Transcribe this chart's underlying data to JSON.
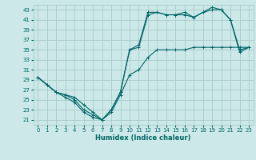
{
  "xlabel": "Humidex (Indice chaleur)",
  "ylabel": "",
  "bg_color": "#cce8e8",
  "grid_color": "#aacccc",
  "line_color": "#006666",
  "xlim": [
    -0.5,
    23.5
  ],
  "ylim": [
    20.0,
    44.0
  ],
  "yticks": [
    21,
    23,
    25,
    27,
    29,
    31,
    33,
    35,
    37,
    39,
    41,
    43
  ],
  "xticks": [
    0,
    1,
    2,
    3,
    4,
    5,
    6,
    7,
    8,
    9,
    10,
    11,
    12,
    13,
    14,
    15,
    16,
    17,
    18,
    19,
    20,
    21,
    22,
    23
  ],
  "line1_x": [
    0,
    1,
    2,
    3,
    4,
    5,
    6,
    7,
    8,
    9,
    10,
    11,
    12,
    13,
    14,
    15,
    16,
    17,
    18,
    19,
    20,
    21,
    22,
    23
  ],
  "line1_y": [
    29.5,
    28,
    26.5,
    25.5,
    24.5,
    22.5,
    21.5,
    21,
    23,
    26.5,
    35,
    35.5,
    42,
    42.5,
    42,
    42,
    42,
    41.5,
    42.5,
    43,
    43,
    41,
    34.5,
    35.5
  ],
  "line2_x": [
    0,
    1,
    2,
    3,
    4,
    5,
    6,
    7,
    8,
    9,
    10,
    11,
    12,
    13,
    14,
    15,
    16,
    17,
    18,
    19,
    20,
    21,
    22,
    23
  ],
  "line2_y": [
    29.5,
    28,
    26.5,
    26,
    25,
    23,
    22,
    21,
    23,
    26.5,
    35,
    36,
    42.5,
    42.5,
    42,
    42,
    42.5,
    41.5,
    42.5,
    43.5,
    43,
    41,
    35,
    35.5
  ],
  "line3_x": [
    0,
    1,
    2,
    3,
    4,
    5,
    6,
    7,
    8,
    9,
    10,
    11,
    12,
    13,
    14,
    15,
    16,
    17,
    18,
    19,
    20,
    21,
    22,
    23
  ],
  "line3_y": [
    29.5,
    28,
    26.5,
    26,
    25.5,
    24,
    22.5,
    21,
    22.5,
    26,
    30,
    31,
    33.5,
    35,
    35,
    35,
    35,
    35.5,
    35.5,
    35.5,
    35.5,
    35.5,
    35.5,
    35.5
  ],
  "xlabel_fontsize": 6.0,
  "tick_fontsize": 5.0,
  "linewidth": 0.8,
  "markersize": 3.5
}
